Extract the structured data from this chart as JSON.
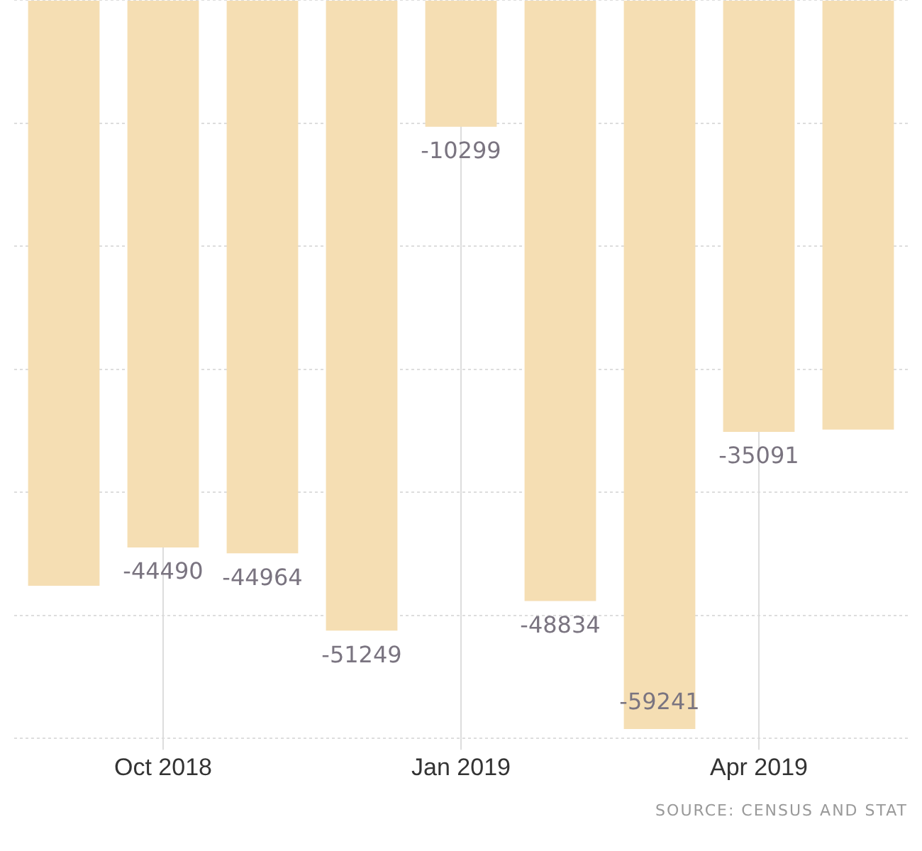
{
  "chart_data": {
    "type": "bar",
    "categories": [
      null,
      "Oct 2018",
      null,
      null,
      "Jan 2019",
      null,
      null,
      "Apr 2019",
      null
    ],
    "values": [
      -47600,
      -44490,
      -44964,
      -51249,
      -10299,
      -48834,
      -59241,
      -35091,
      -34900
    ],
    "value_labels": [
      null,
      "-44490",
      "-44964",
      "-51249",
      "-10299",
      "-48834",
      "-59241",
      "-35091",
      null
    ],
    "color": "#f5deb3",
    "tick_labels": "x",
    "grid": true,
    "legend": false,
    "annotations": [
      "SOURCE: CENSUS AND STAT"
    ]
  }
}
